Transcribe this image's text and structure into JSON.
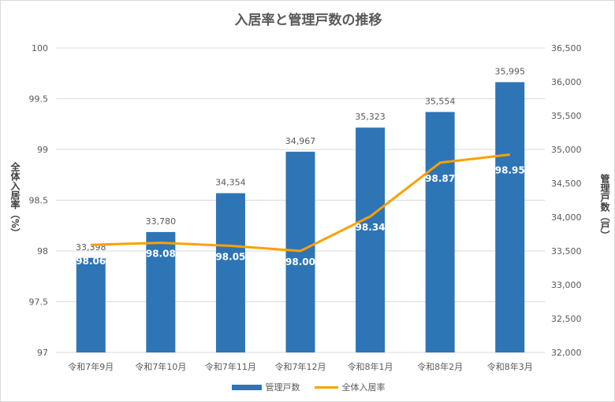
{
  "chart_data": {
    "type": "bar+line",
    "title": "入居率と管理戸数の推移",
    "categories": [
      "令和7年9月",
      "令和7年10月",
      "令和7年11月",
      "令和7年12月",
      "令和8年1月",
      "令和8年2月",
      "令和8年3月"
    ],
    "series": [
      {
        "name": "管理戸数",
        "type": "bar",
        "axis": "right",
        "color": "#2e75b6",
        "values": [
          33398,
          33780,
          34354,
          34967,
          35323,
          35554,
          35995
        ],
        "labels": [
          "33,398",
          "33,780",
          "34,354",
          "34,967",
          "35,323",
          "35,554",
          "35,995"
        ]
      },
      {
        "name": "全体入居率",
        "type": "line",
        "axis": "left",
        "color": "#ffa000",
        "values": [
          98.06,
          98.08,
          98.05,
          98.0,
          98.34,
          98.87,
          98.95
        ],
        "labels": [
          "98.06",
          "98.08",
          "98.05",
          "98.00",
          "98.34",
          "98.87",
          "98.95"
        ]
      }
    ],
    "ylabel_left": "全体入居率（%）",
    "ylabel_right": "管理戸数（戸）",
    "ylim_left": [
      97,
      100
    ],
    "yticks_left": [
      "97",
      "97.5",
      "98",
      "98.5",
      "99",
      "99.5",
      "100"
    ],
    "ylim_right": [
      32000,
      36500
    ],
    "yticks_right": [
      "32,000",
      "32,500",
      "33,000",
      "33,500",
      "34,000",
      "34,500",
      "35,000",
      "35,500",
      "36,000",
      "36,500"
    ],
    "grid": true,
    "legend": "bottom"
  }
}
